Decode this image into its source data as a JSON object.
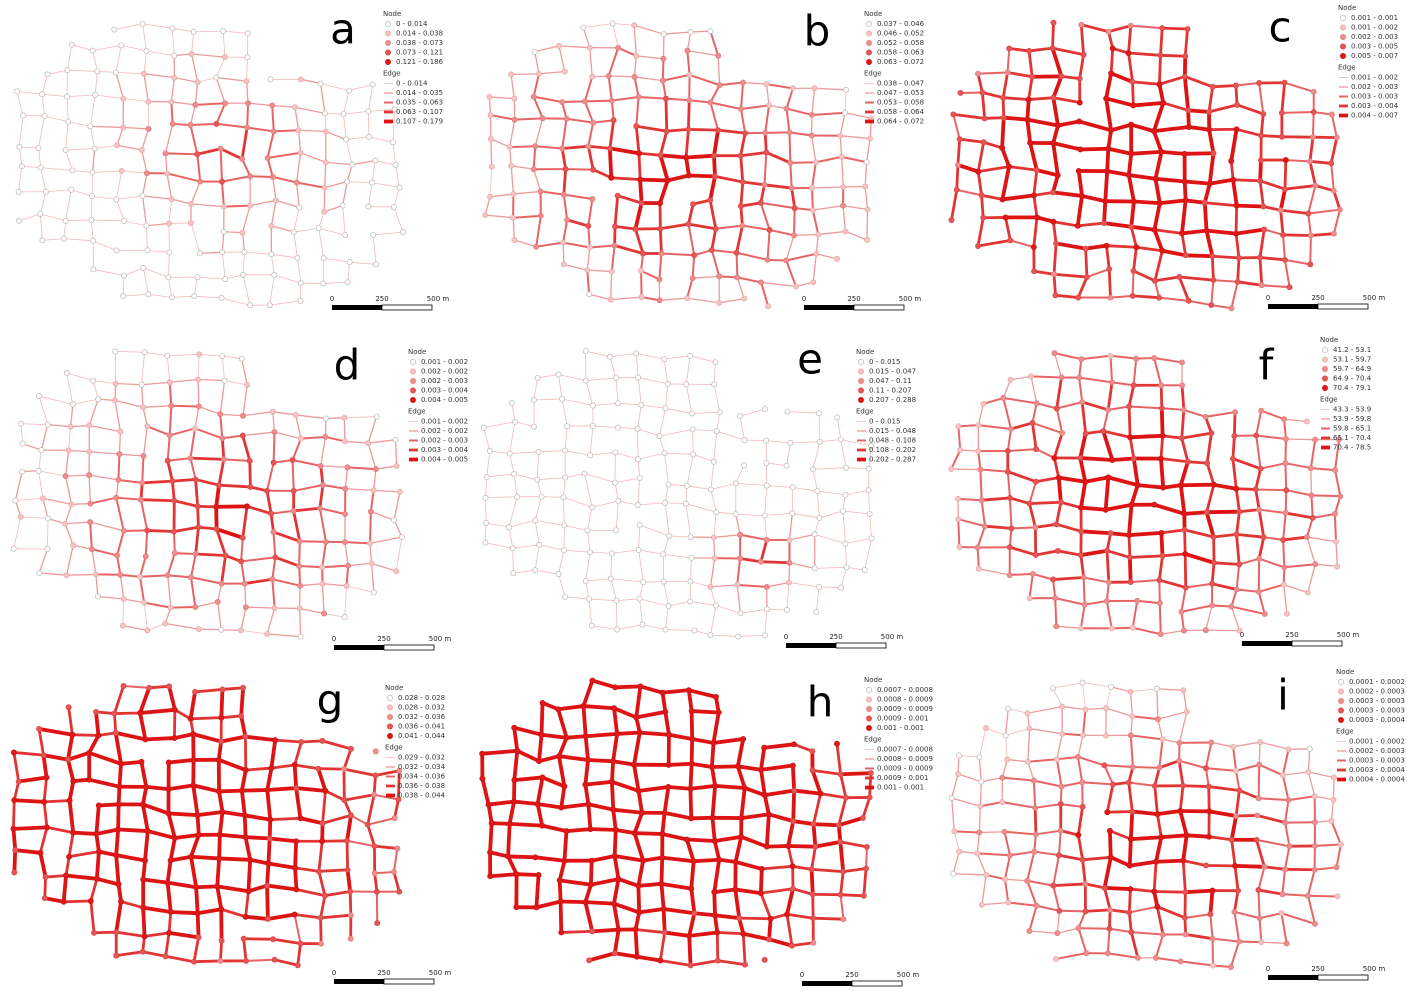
{
  "panels": [
    {
      "letter": "a",
      "node": {
        "title": "Node",
        "classes": [
          "0 - 0.014",
          "0.014 - 0.038",
          "0.038 - 0.073",
          "0.073 - 0.121",
          "0.121 - 0.186"
        ]
      },
      "edge": {
        "title": "Edge",
        "classes": [
          "0 - 0.014",
          "0.014 - 0.035",
          "0.035 - 0.063",
          "0.063 - 0.107",
          "0.107 - 0.179"
        ]
      },
      "scale": [
        "0",
        "250",
        "500 m"
      ]
    },
    {
      "letter": "b",
      "node": {
        "title": "Node",
        "classes": [
          "0.037 - 0.046",
          "0.046 - 0.052",
          "0.052 - 0.058",
          "0.058 - 0.063",
          "0.063 - 0.072"
        ]
      },
      "edge": {
        "title": "Edge",
        "classes": [
          "0.038 - 0.047",
          "0.047 - 0.053",
          "0.053 - 0.058",
          "0.058 - 0.064",
          "0.064 - 0.072"
        ]
      },
      "scale": [
        "0",
        "250",
        "500 m"
      ]
    },
    {
      "letter": "c",
      "node": {
        "title": "Node",
        "classes": [
          "0.001 - 0.001",
          "0.001 - 0.002",
          "0.002 - 0.003",
          "0.003 - 0.005",
          "0.005 - 0.007"
        ]
      },
      "edge": {
        "title": "Edge",
        "classes": [
          "0.001 - 0.002",
          "0.002 - 0.003",
          "0.003 - 0.003",
          "0.003 - 0.004",
          "0.004 - 0.007"
        ]
      },
      "scale": [
        "0",
        "250",
        "500 m"
      ]
    },
    {
      "letter": "d",
      "node": {
        "title": "Node",
        "classes": [
          "0.001 - 0.002",
          "0.002 - 0.002",
          "0.002 - 0.003",
          "0.003 - 0.004",
          "0.004 - 0.005"
        ]
      },
      "edge": {
        "title": "Edge",
        "classes": [
          "0.001 - 0.002",
          "0.002 - 0.002",
          "0.002 - 0.003",
          "0.003 - 0.004",
          "0.004 - 0.005"
        ]
      },
      "scale": [
        "0",
        "250",
        "500 m"
      ]
    },
    {
      "letter": "e",
      "node": {
        "title": "Node",
        "classes": [
          "0 - 0.015",
          "0.015 - 0.047",
          "0.047 - 0.11",
          "0.11 - 0.207",
          "0.207 - 0.288"
        ]
      },
      "edge": {
        "title": "Edge",
        "classes": [
          "0 - 0.015",
          "0.015 - 0.048",
          "0.048 - 0.108",
          "0.108 - 0.202",
          "0.202 - 0.287"
        ]
      },
      "scale": [
        "0",
        "250",
        "500 m"
      ]
    },
    {
      "letter": "f",
      "node": {
        "title": "Node",
        "classes": [
          "41.2 - 53.1",
          "53.1 - 59.7",
          "59.7 - 64.9",
          "64.9 - 70.4",
          "70.4 - 79.1"
        ]
      },
      "edge": {
        "title": "Edge",
        "classes": [
          "43.3 - 53.9",
          "53.9 - 59.8",
          "59.8 - 65.1",
          "65.1 - 70.4",
          "70.4 - 78.5"
        ]
      },
      "scale": [
        "0",
        "250",
        "500 m"
      ]
    },
    {
      "letter": "g",
      "node": {
        "title": "Node",
        "classes": [
          "0.028 - 0.028",
          "0.028 - 0.032",
          "0.032 - 0.036",
          "0.036 - 0.041",
          "0.041 - 0.044"
        ]
      },
      "edge": {
        "title": "Edge",
        "classes": [
          "0.029 - 0.032",
          "0.032 - 0.034",
          "0.034 - 0.036",
          "0.036 - 0.038",
          "0.038 - 0.044"
        ]
      },
      "scale": [
        "0",
        "250",
        "500 m"
      ]
    },
    {
      "letter": "h",
      "node": {
        "title": "Node",
        "classes": [
          "0.0007 - 0.0008",
          "0.0008 - 0.0009",
          "0.0009 - 0.0009",
          "0.0009 - 0.001",
          "0.001 - 0.001"
        ]
      },
      "edge": {
        "title": "Edge",
        "classes": [
          "0.0007 - 0.0008",
          "0.0008 - 0.0009",
          "0.0009 - 0.0009",
          "0.0009 - 0.001",
          "0.001 - 0.001"
        ]
      },
      "scale": [
        "0",
        "250",
        "500 m"
      ]
    },
    {
      "letter": "i",
      "node": {
        "title": "Node",
        "classes": [
          "0.0001 - 0.0002",
          "0.0002 - 0.0003",
          "0.0003 - 0.0003",
          "0.0003 - 0.0003",
          "0.0003 - 0.0004"
        ]
      },
      "edge": {
        "title": "Edge",
        "classes": [
          "0.0001 - 0.0002",
          "0.0002 - 0.0003",
          "0.0003 - 0.0003",
          "0.0003 - 0.0004",
          "0.0004 - 0.0004"
        ]
      },
      "scale": [
        "0",
        "250",
        "500 m"
      ]
    }
  ]
}
